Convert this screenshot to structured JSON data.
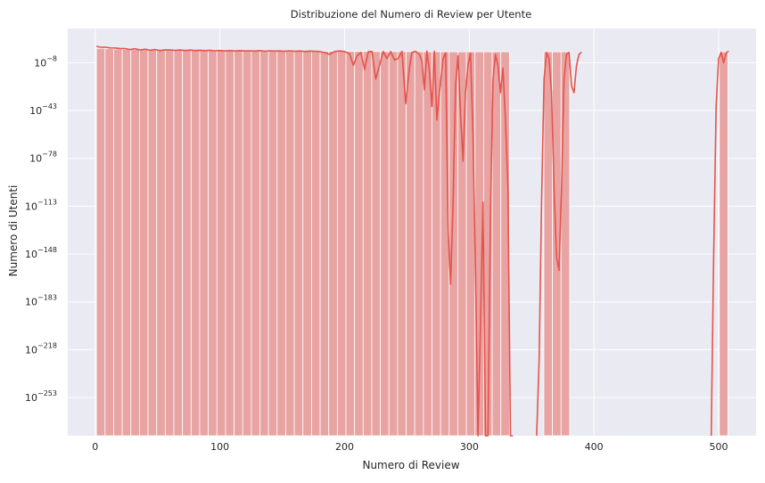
{
  "chart_data": {
    "type": "bar",
    "title": "Distribuzione del Numero di Review per Utente",
    "xlabel": "Numero di Review",
    "ylabel": "Numero di Utenti",
    "xlim": [
      -22,
      530
    ],
    "x_ticks": [
      0,
      100,
      200,
      300,
      400,
      500
    ],
    "y_scale": "log",
    "ylim_exponent": [
      -281,
      17
    ],
    "y_ticks": [
      {
        "base": "10",
        "exp": "−8",
        "value_exp": -8
      },
      {
        "base": "10",
        "exp": "−43",
        "value_exp": -43
      },
      {
        "base": "10",
        "exp": "−78",
        "value_exp": -78
      },
      {
        "base": "10",
        "exp": "−113",
        "value_exp": -113
      },
      {
        "base": "10",
        "exp": "−148",
        "value_exp": -148
      },
      {
        "base": "10",
        "exp": "−183",
        "value_exp": -183
      },
      {
        "base": "10",
        "exp": "−218",
        "value_exp": -218
      },
      {
        "base": "10",
        "exp": "−253",
        "value_exp": -253
      }
    ],
    "bin_width": 6.9,
    "bins": [
      {
        "x0": 1,
        "count_exp": 2.5
      },
      {
        "x0": 7.9,
        "count_exp": 2.2
      },
      {
        "x0": 14.8,
        "count_exp": 2.0
      },
      {
        "x0": 21.7,
        "count_exp": 1.8
      },
      {
        "x0": 28.6,
        "count_exp": 1.6
      },
      {
        "x0": 35.5,
        "count_exp": 1.5
      },
      {
        "x0": 42.4,
        "count_exp": 1.4
      },
      {
        "x0": 49.3,
        "count_exp": 1.3
      },
      {
        "x0": 56.2,
        "count_exp": 1.2
      },
      {
        "x0": 63.1,
        "count_exp": 1.1
      },
      {
        "x0": 70.0,
        "count_exp": 1.0
      },
      {
        "x0": 76.9,
        "count_exp": 0.95
      },
      {
        "x0": 83.8,
        "count_exp": 0.9
      },
      {
        "x0": 90.7,
        "count_exp": 0.85
      },
      {
        "x0": 97.6,
        "count_exp": 0.8
      },
      {
        "x0": 104.5,
        "count_exp": 0.75
      },
      {
        "x0": 111.4,
        "count_exp": 0.7
      },
      {
        "x0": 118.3,
        "count_exp": 0.65
      },
      {
        "x0": 125.2,
        "count_exp": 0.6
      },
      {
        "x0": 132.1,
        "count_exp": 0.55
      },
      {
        "x0": 139.0,
        "count_exp": 0.5
      },
      {
        "x0": 145.9,
        "count_exp": 0.48
      },
      {
        "x0": 152.8,
        "count_exp": 0.45
      },
      {
        "x0": 159.7,
        "count_exp": 0.42
      },
      {
        "x0": 166.6,
        "count_exp": 0.4
      },
      {
        "x0": 173.5,
        "count_exp": 0.38
      },
      {
        "x0": 180.4,
        "count_exp": 0.35
      },
      {
        "x0": 187.3,
        "count_exp": 0.32
      },
      {
        "x0": 194.2,
        "count_exp": 0.3
      },
      {
        "x0": 201.1,
        "count_exp": 0.28
      },
      {
        "x0": 208.0,
        "count_exp": 0.25
      },
      {
        "x0": 214.9,
        "count_exp": 0.22
      },
      {
        "x0": 221.8,
        "count_exp": 0.2
      },
      {
        "x0": 228.7,
        "count_exp": 0.18
      },
      {
        "x0": 235.6,
        "count_exp": 0.15
      },
      {
        "x0": 242.5,
        "count_exp": 0.12
      },
      {
        "x0": 249.4,
        "count_exp": 0.1
      },
      {
        "x0": 256.3,
        "count_exp": 0.08
      },
      {
        "x0": 263.2,
        "count_exp": 0.06
      },
      {
        "x0": 270.1,
        "count_exp": 0.04
      },
      {
        "x0": 277.0,
        "count_exp": 0.0
      },
      {
        "x0": 283.9,
        "count_exp": 0.0
      },
      {
        "x0": 290.8,
        "count_exp": 0.0
      },
      {
        "x0": 297.7,
        "count_exp": 0.0
      },
      {
        "x0": 304.6,
        "count_exp": 0.0
      },
      {
        "x0": 311.5,
        "count_exp": 0.0
      },
      {
        "x0": 318.4,
        "count_exp": 0.0
      },
      {
        "x0": 325.3,
        "count_exp": 0.0
      },
      {
        "x0": 359.8,
        "count_exp": 0.0
      },
      {
        "x0": 366.7,
        "count_exp": 0.0
      },
      {
        "x0": 373.6,
        "count_exp": 0.0
      },
      {
        "x0": 500.5,
        "count_exp": 0.0
      }
    ],
    "kde_curve": {
      "name": "KDE",
      "points": [
        [
          1,
          4.0
        ],
        [
          4,
          3.3
        ],
        [
          8,
          3.3
        ],
        [
          12,
          2.8
        ],
        [
          16,
          2.7
        ],
        [
          20,
          2.4
        ],
        [
          24,
          2.3
        ],
        [
          28,
          1.6
        ],
        [
          32,
          2.2
        ],
        [
          36,
          1.2
        ],
        [
          40,
          1.9
        ],
        [
          44,
          1.1
        ],
        [
          48,
          1.6
        ],
        [
          52,
          0.9
        ],
        [
          56,
          1.4
        ],
        [
          60,
          1.3
        ],
        [
          64,
          1.0
        ],
        [
          68,
          1.3
        ],
        [
          72,
          0.9
        ],
        [
          76,
          1.2
        ],
        [
          80,
          0.9
        ],
        [
          84,
          1.1
        ],
        [
          88,
          0.8
        ],
        [
          92,
          1.1
        ],
        [
          96,
          0.7
        ],
        [
          100,
          0.9
        ],
        [
          104,
          0.6
        ],
        [
          108,
          0.8
        ],
        [
          112,
          0.6
        ],
        [
          116,
          0.8
        ],
        [
          120,
          0.6
        ],
        [
          124,
          0.7
        ],
        [
          128,
          0.5
        ],
        [
          132,
          0.8
        ],
        [
          136,
          0.4
        ],
        [
          140,
          0.7
        ],
        [
          144,
          0.5
        ],
        [
          148,
          0.6
        ],
        [
          152,
          0.3
        ],
        [
          156,
          0.7
        ],
        [
          160,
          0.3
        ],
        [
          164,
          0.6
        ],
        [
          168,
          0.2
        ],
        [
          172,
          0.5
        ],
        [
          176,
          0.4
        ],
        [
          180,
          0.2
        ],
        [
          184,
          -0.6
        ],
        [
          188,
          -2
        ],
        [
          192,
          0.2
        ],
        [
          196,
          0.6
        ],
        [
          200,
          0.2
        ],
        [
          204,
          -1.5
        ],
        [
          207,
          -10
        ],
        [
          210,
          -3
        ],
        [
          213,
          -0.5
        ],
        [
          216,
          -13
        ],
        [
          219,
          0.1
        ],
        [
          222,
          0.2
        ],
        [
          225,
          -20
        ],
        [
          228,
          -10
        ],
        [
          231,
          0.2
        ],
        [
          234,
          -5
        ],
        [
          237,
          0.2
        ],
        [
          240,
          -6
        ],
        [
          243,
          -5
        ],
        [
          246,
          0.3
        ],
        [
          249,
          -38
        ],
        [
          252,
          -12
        ],
        [
          254,
          -0.5
        ],
        [
          257,
          0.3
        ],
        [
          260,
          -2
        ],
        [
          262,
          -7
        ],
        [
          264,
          -28
        ],
        [
          266,
          0.5
        ],
        [
          268,
          -14
        ],
        [
          270,
          -40
        ],
        [
          272,
          0.3
        ],
        [
          274,
          -50
        ],
        [
          276,
          -30
        ],
        [
          279,
          -5
        ],
        [
          281,
          -0.8
        ],
        [
          283,
          -130
        ],
        [
          285,
          -170
        ],
        [
          287,
          -110
        ],
        [
          289,
          -25
        ],
        [
          291,
          -3
        ],
        [
          293,
          -45
        ],
        [
          295,
          -80
        ],
        [
          297,
          -30
        ],
        [
          299,
          -10
        ],
        [
          301,
          -1
        ],
        [
          303,
          -60
        ],
        [
          305,
          -160
        ],
        [
          307,
          -281
        ],
        [
          309,
          -200
        ],
        [
          311,
          -110
        ],
        [
          313,
          -281
        ],
        [
          315,
          -281
        ],
        [
          317,
          -120
        ],
        [
          319,
          -20
        ],
        [
          321,
          -2
        ],
        [
          323,
          -10
        ],
        [
          325,
          -30
        ],
        [
          327,
          -12
        ],
        [
          329,
          -50
        ],
        [
          331,
          -100
        ],
        [
          333,
          -281
        ],
        [
          335,
          -281
        ],
        [
          354,
          -281
        ],
        [
          356,
          -225
        ],
        [
          358,
          -110
        ],
        [
          360,
          -20
        ],
        [
          362,
          -0.5
        ],
        [
          364,
          -5
        ],
        [
          366,
          -30
        ],
        [
          368,
          -100
        ],
        [
          370,
          -150
        ],
        [
          372,
          -160
        ],
        [
          374,
          -100
        ],
        [
          376,
          -20
        ],
        [
          378,
          -2
        ],
        [
          380,
          -0.5
        ],
        [
          382,
          -25
        ],
        [
          384,
          -30
        ],
        [
          386,
          -10
        ],
        [
          388,
          -2
        ],
        [
          390,
          -0.2
        ],
        [
          494,
          -281
        ],
        [
          496,
          -150
        ],
        [
          498,
          -40
        ],
        [
          500,
          -5
        ],
        [
          502,
          -0.5
        ],
        [
          504,
          -8
        ],
        [
          506,
          -1
        ],
        [
          508,
          0.5
        ]
      ]
    },
    "colors": {
      "bar_fill": "#e8a3a3",
      "bar_edge": "#ffffff",
      "line": "#e5534b",
      "plot_bg": "#eaeaf2",
      "grid": "#ffffff"
    },
    "grid": true,
    "legend": "none"
  }
}
